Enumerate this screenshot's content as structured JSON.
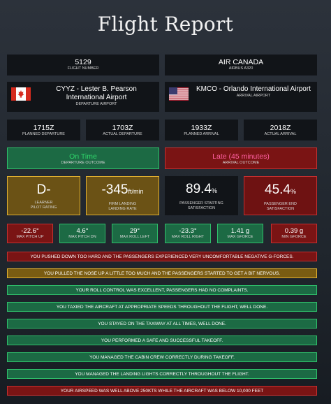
{
  "title": "Flight Report",
  "flight": {
    "number": "5129",
    "number_label": "FLIGHT NUMBER",
    "airline": "AIR CANADA",
    "aircraft": "AIRBUS A320"
  },
  "departure": {
    "airport": "CYYZ - Lester B. Pearson International Airport",
    "label": "DEPARTURE AIRPORT",
    "flag": "canada-flag"
  },
  "arrival": {
    "airport": "KMCO - Orlando International Airport",
    "label": "ARRIVAL AIRPORT",
    "flag": "usa-flag"
  },
  "times": [
    {
      "value": "1715Z",
      "label": "PLANNED DEPARTURE"
    },
    {
      "value": "1703Z",
      "label": "ACTUAL DEPARTURE"
    },
    {
      "value": "1933Z",
      "label": "PLANNED ARRIVAL"
    },
    {
      "value": "2018Z",
      "label": "ACTUAL ARRIVAL"
    }
  ],
  "outcomes": {
    "departure": {
      "value": "On Time",
      "label": "DEPARTURE OUTCOME",
      "color": "#2fd56a"
    },
    "arrival": {
      "value": "Late (45 minutes)",
      "label": "ARRIVAL OUTCOME",
      "color": "#ff5fa0"
    }
  },
  "ratings": {
    "pilot": {
      "value": "D-",
      "line1": "LEARNER",
      "line2": "PILOT RATING"
    },
    "landing": {
      "value": "-345",
      "unit": "ft/min",
      "line1": "FIRM LANDING",
      "line2": "LANDING RATE"
    },
    "start_satisfaction": {
      "value": "89.4",
      "unit": "%",
      "line1": "PASSENGER STARTING",
      "line2": "SATISFACTION"
    },
    "end_satisfaction": {
      "value": "45.4",
      "unit": "%",
      "line1": "PASSENGER END",
      "line2": "SATISFACTION"
    }
  },
  "stats": [
    {
      "value": "-22.6°",
      "label": "MAX PITCH UP"
    },
    {
      "value": "4.6°",
      "label": "MAX PITCH DN"
    },
    {
      "value": "29°",
      "label": "MAX ROLL LEFT"
    },
    {
      "value": "-23.3°",
      "label": "MAX ROLL RIGHT"
    },
    {
      "value": "1.41 g",
      "label": "MAX GFORCE"
    },
    {
      "value": "0.39 g",
      "label": "MIN GFORCE"
    }
  ],
  "messages": [
    "YOU PUSHED DOWN TOO HARD AND THE PASSENGERS EXPERIENCED VERY UNCOMFORTABLE NEGATIVE G-FORCES.",
    "YOU PULLED THE NOSE UP A LITTLE TOO MUCH AND THE PASSENGERS STARTED TO GET A BIT NERVOUS.",
    "YOUR ROLL CONTROL WAS EXCELLENT, PASSENGERS HAD NO COMPLAINTS.",
    "YOU TAXIED THE AIRCRAFT AT APPROPRIATE SPEEDS THROUGHOUT THE FLIGHT, WELL DONE.",
    "YOU STAYED ON THE TAXIWAY AT ALL TIMES, WELL DONE.",
    "YOU PERFORMED A SAFE AND SUCCESSFUL TAKEOFF.",
    "YOU MANAGED THE CABIN CREW CORRECTLY DURING TAKEOFF.",
    "YOU MANAGED THE LANDING LIGHTS CORRECTLY THROUGHOUT THE FLIGHT.",
    "YOUR AIRSPEED WAS WELL ABOVE 250KTS WHILE THE AIRCRAFT WAS BELOW 10,000 FEET"
  ],
  "colors": {
    "good": "#21774a",
    "warn": "#8a6a14",
    "bad": "#8a1616",
    "good_border": "#2fbf6a",
    "warn_border": "#e0b030",
    "bad_border": "#d33a3a"
  }
}
